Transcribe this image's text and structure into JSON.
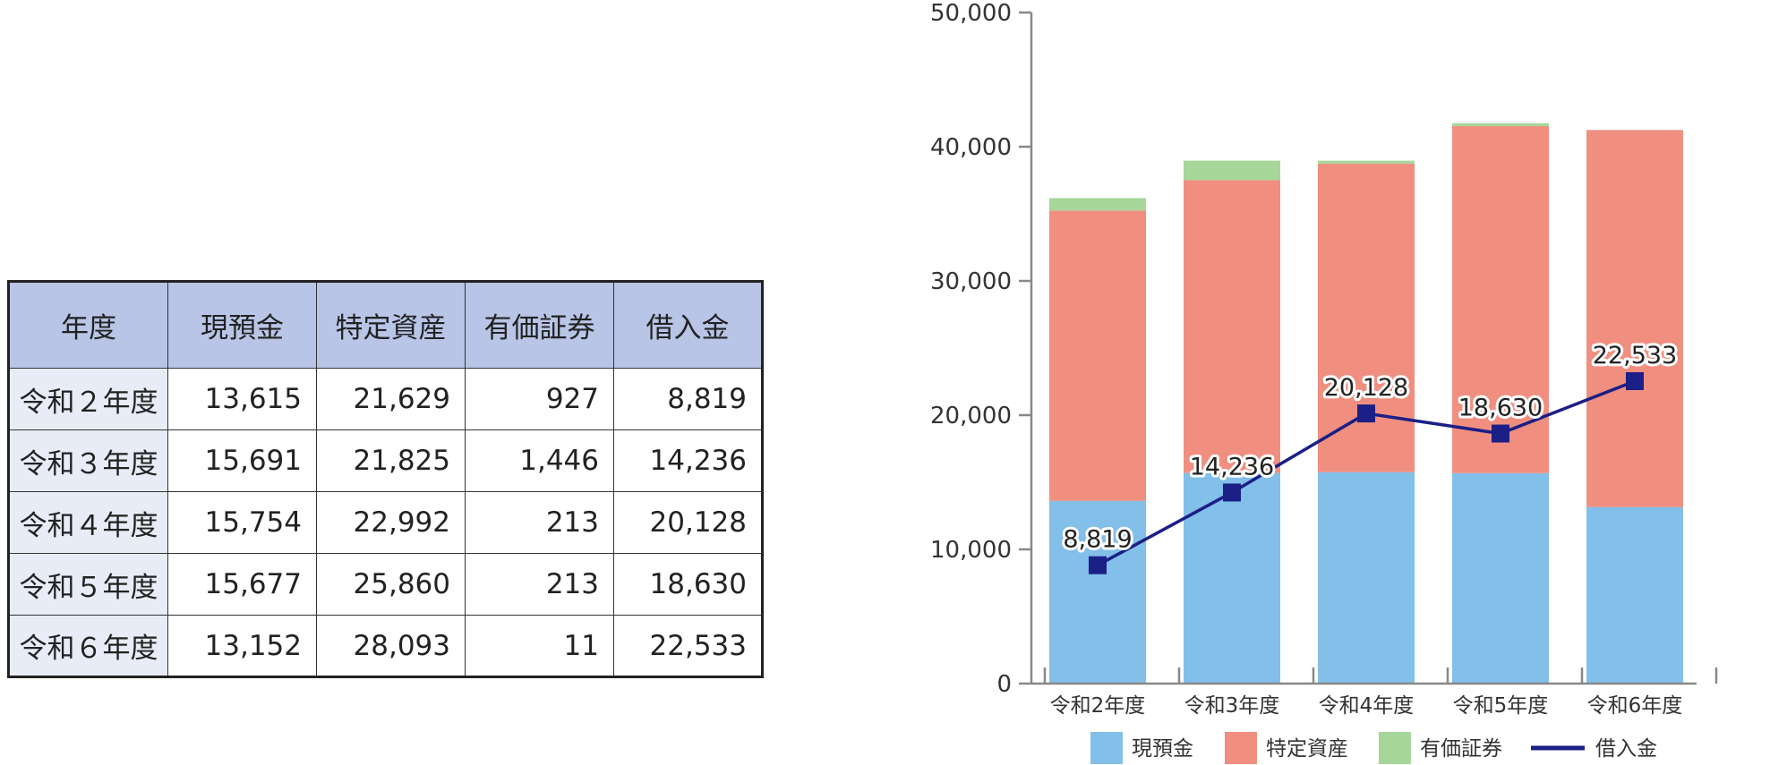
{
  "table": {
    "headers": [
      "年度",
      "現預金",
      "特定資産",
      "有価証券",
      "借入金"
    ],
    "rows": [
      [
        "令和２年度",
        "13,615",
        "21,629",
        "927",
        "8,819"
      ],
      [
        "令和３年度",
        "15,691",
        "21,825",
        "1,446",
        "14,236"
      ],
      [
        "令和４年度",
        "15,754",
        "22,992",
        "213",
        "20,128"
      ],
      [
        "令和５年度",
        "15,677",
        "25,860",
        "213",
        "18,630"
      ],
      [
        "令和６年度",
        "13,152",
        "28,093",
        "11",
        "22,533"
      ]
    ]
  },
  "chart_data": {
    "type": "bar",
    "stacked": true,
    "categories": [
      "令和2年度",
      "令和3年度",
      "令和4年度",
      "令和5年度",
      "令和6年度"
    ],
    "series": [
      {
        "name": "現預金",
        "type": "bar",
        "color": "#82bfe9",
        "values": [
          13615,
          15691,
          15754,
          15677,
          13152
        ]
      },
      {
        "name": "特定資産",
        "type": "bar",
        "color": "#f08f80",
        "values": [
          21629,
          21825,
          22992,
          25860,
          28093
        ]
      },
      {
        "name": "有価証券",
        "type": "bar",
        "color": "#a6d69a",
        "values": [
          927,
          1446,
          213,
          213,
          11
        ]
      },
      {
        "name": "借入金",
        "type": "line",
        "color": "#1b1f86",
        "values": [
          8819,
          14236,
          20128,
          18630,
          22533
        ],
        "labels": [
          "8,819",
          "14,236",
          "20,128",
          "18,630",
          "22,533"
        ]
      }
    ],
    "yticks": [
      "0",
      "10,000",
      "20,000",
      "30,000",
      "40,000",
      "50,000"
    ],
    "ylim": [
      0,
      50000
    ],
    "xlabel": "",
    "ylabel": "",
    "grid": false,
    "legend_position": "bottom"
  }
}
